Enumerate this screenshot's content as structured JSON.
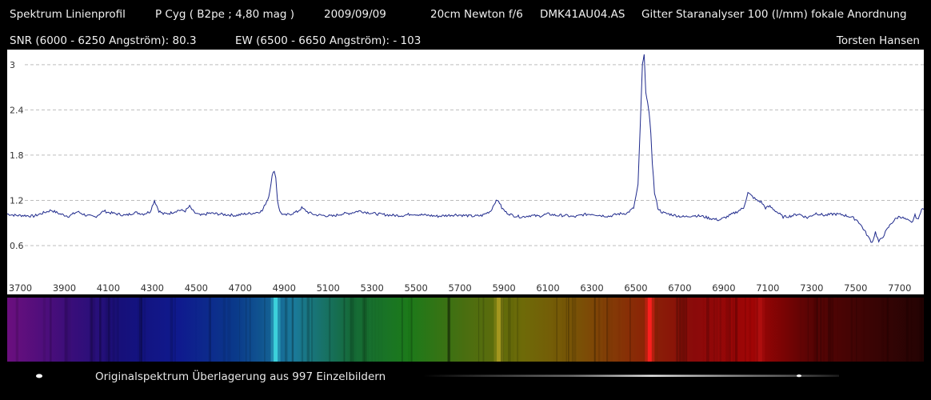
{
  "header": {
    "title": "Spektrum Linienprofil",
    "object": "P Cyg ( B2pe ; 4,80 mag )",
    "date": "2009/09/09",
    "telescope": "20cm Newton f/6",
    "camera": "DMK41AU04.AS",
    "grating": "Gitter Staranalyser 100 (l/mm) fokale Anordnung",
    "snr": "SNR (6000 - 6250 Angström): 80.3",
    "ew": "EW (6500 - 6650 Angström):  - 103",
    "author": "Torsten Hansen"
  },
  "caption": "Originalspektrum Überlagerung aus 997 Einzelbildern",
  "chart_data": {
    "type": "line",
    "xlim": [
      3640,
      7810
    ],
    "ylim": [
      0.25,
      3.2
    ],
    "xticks": [
      3700,
      3900,
      4100,
      4300,
      4500,
      4700,
      4900,
      5100,
      5300,
      5500,
      5700,
      5900,
      6100,
      6300,
      6500,
      6700,
      6900,
      7100,
      7300,
      7500,
      7700
    ],
    "yticks": [
      0.6,
      1.2,
      1.8,
      2.4,
      3
    ],
    "grid": "horizontal dashed",
    "line_color": "#1f2a8c",
    "series": [
      {
        "x": [
          3640,
          3680,
          3720,
          3760,
          3800,
          3840,
          3880,
          3920,
          3960,
          4000,
          4040,
          4080,
          4100,
          4140,
          4180,
          4220,
          4260,
          4290,
          4310,
          4330,
          4350,
          4380,
          4420,
          4450,
          4470,
          4490,
          4520,
          4560,
          4600,
          4640,
          4680,
          4720,
          4760,
          4800,
          4830,
          4845,
          4855,
          4862,
          4870,
          4880,
          4900,
          4930,
          4960,
          4980,
          4990,
          5010,
          5040,
          5080,
          5120,
          5160,
          5200,
          5240,
          5280,
          5320,
          5360,
          5400,
          5440,
          5480,
          5520,
          5560,
          5600,
          5640,
          5680,
          5720,
          5760,
          5800,
          5840,
          5860,
          5875,
          5890,
          5910,
          5940,
          5980,
          6020,
          6060,
          6100,
          6140,
          6180,
          6220,
          6260,
          6300,
          6340,
          6380,
          6420,
          6460,
          6490,
          6510,
          6520,
          6530,
          6538,
          6545,
          6553,
          6560,
          6568,
          6575,
          6585,
          6600,
          6615,
          6630,
          6650,
          6680,
          6720,
          6760,
          6800,
          6840,
          6880,
          6920,
          6960,
          6990,
          7010,
          7030,
          7050,
          7070,
          7090,
          7110,
          7140,
          7170,
          7200,
          7240,
          7280,
          7320,
          7360,
          7400,
          7440,
          7480,
          7510,
          7540,
          7560,
          7575,
          7590,
          7605,
          7620,
          7640,
          7660,
          7680,
          7700,
          7720,
          7740,
          7755,
          7770,
          7785,
          7800,
          7810
        ],
        "y": [
          1.02,
          1.0,
          1.0,
          0.99,
          1.03,
          1.07,
          1.02,
          0.99,
          1.05,
          1.0,
          0.98,
          1.06,
          1.04,
          1.02,
          1.0,
          1.04,
          1.02,
          1.05,
          1.2,
          1.06,
          1.02,
          1.03,
          1.07,
          1.06,
          1.12,
          1.04,
          1.0,
          1.03,
          1.02,
          1.01,
          1.0,
          1.02,
          1.03,
          1.06,
          1.25,
          1.52,
          1.6,
          1.5,
          1.2,
          1.05,
          1.0,
          1.02,
          1.05,
          1.1,
          1.08,
          1.04,
          1.01,
          1.0,
          0.99,
          1.02,
          1.03,
          1.06,
          1.04,
          1.02,
          1.01,
          1.0,
          1.0,
          1.02,
          1.01,
          1.0,
          0.99,
          1.0,
          1.01,
          1.0,
          0.99,
          1.0,
          1.06,
          1.18,
          1.2,
          1.1,
          1.04,
          1.0,
          0.98,
          1.0,
          0.99,
          1.02,
          1.0,
          1.0,
          0.98,
          1.01,
          1.02,
          1.0,
          0.99,
          1.02,
          1.03,
          1.1,
          1.4,
          2.2,
          3.0,
          3.12,
          2.65,
          2.5,
          2.35,
          2.1,
          1.7,
          1.3,
          1.1,
          1.05,
          1.03,
          1.02,
          1.0,
          0.98,
          1.0,
          0.99,
          0.96,
          0.94,
          0.99,
          1.05,
          1.1,
          1.3,
          1.25,
          1.2,
          1.18,
          1.1,
          1.12,
          1.05,
          0.98,
          0.99,
          1.02,
          0.97,
          1.03,
          1.0,
          1.02,
          1.01,
          0.98,
          0.93,
          0.8,
          0.7,
          0.64,
          0.78,
          0.65,
          0.7,
          0.8,
          0.89,
          0.95,
          0.99,
          0.96,
          0.93,
          0.9,
          1.0,
          0.94,
          1.1,
          1.08
        ]
      }
    ]
  },
  "spectrum_strip": {
    "colors": [
      "#6b0f7e",
      "#3e0e7a",
      "#16107a",
      "#0f1a8e",
      "#0a3a8a",
      "#1a7a9a",
      "#156a38",
      "#1c7a1a",
      "#4a6e10",
      "#6e6a08",
      "#7a5006",
      "#8a2806",
      "#8a0a0a",
      "#a00505",
      "#5a0404",
      "#3c0404",
      "#240303"
    ],
    "bright_lines": [
      {
        "wavelength": 4861,
        "color": "#3fd8e0"
      },
      {
        "wavelength": 5876,
        "color": "#a99a20"
      },
      {
        "wavelength": 6563,
        "color": "#ff2020"
      },
      {
        "wavelength": 7065,
        "color": "#b01010"
      }
    ]
  }
}
